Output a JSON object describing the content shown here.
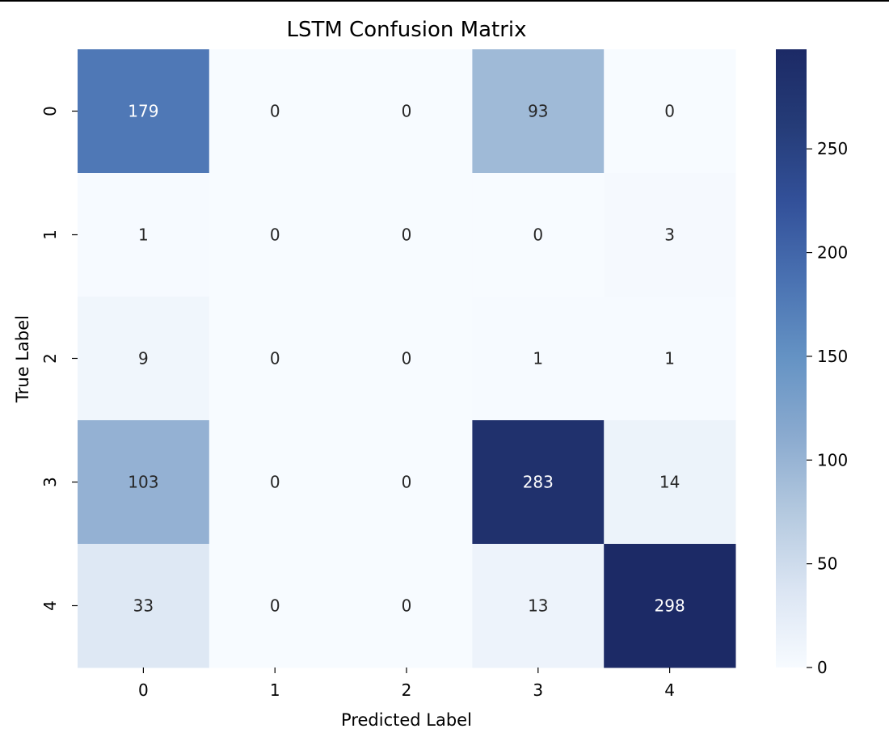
{
  "chart_data": {
    "type": "heatmap",
    "title": "LSTM Confusion Matrix",
    "xlabel": "Predicted Label",
    "ylabel": "True Label",
    "x_categories": [
      "0",
      "1",
      "2",
      "3",
      "4"
    ],
    "y_categories": [
      "0",
      "1",
      "2",
      "3",
      "4"
    ],
    "values": [
      [
        179,
        0,
        0,
        93,
        0
      ],
      [
        1,
        0,
        0,
        0,
        3
      ],
      [
        9,
        0,
        0,
        1,
        1
      ],
      [
        103,
        0,
        0,
        283,
        14
      ],
      [
        33,
        0,
        0,
        13,
        298
      ]
    ],
    "colorscale": "Blues",
    "color_stops": [
      "#f7fbff",
      "#dbe5f3",
      "#b4c9df",
      "#8aaacf",
      "#6593c4",
      "#4a72b2",
      "#33519a",
      "#253c78",
      "#1c2a66"
    ],
    "colorbar": {
      "range": [
        0,
        298
      ],
      "ticks": [
        0,
        50,
        100,
        150,
        200,
        250
      ],
      "tick_labels": [
        "0",
        "50",
        "100",
        "150",
        "200",
        "250"
      ]
    },
    "grid": false,
    "legend": "colorbar-right"
  }
}
